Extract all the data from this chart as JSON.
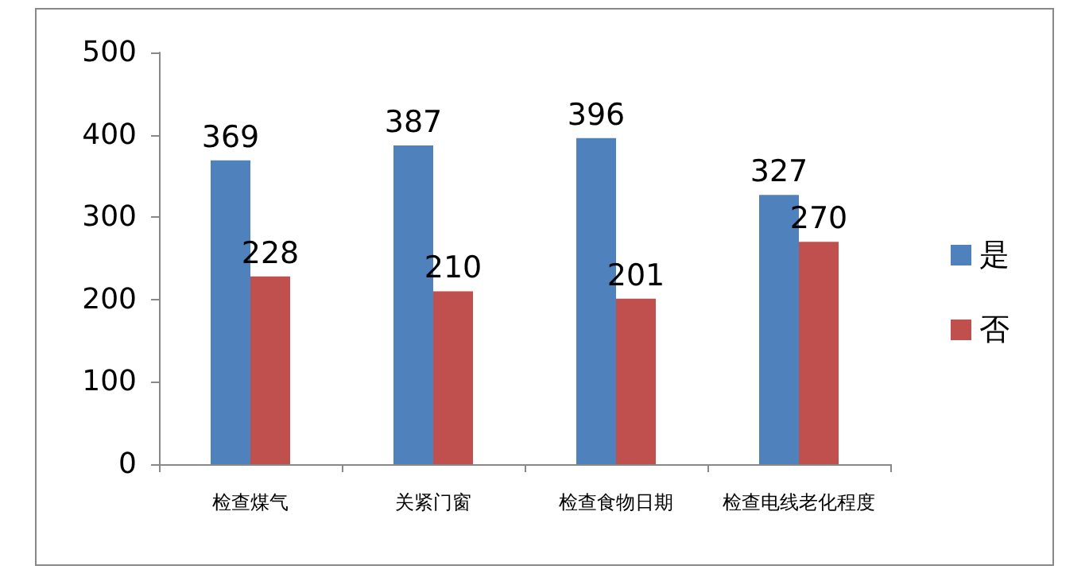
{
  "chart_data": {
    "type": "bar",
    "categories": [
      "检查煤气",
      "关紧门窗",
      "检查食物日期",
      "检查电线老化程度"
    ],
    "series": [
      {
        "name": "是",
        "color": "#4f81bd",
        "values": [
          369,
          387,
          396,
          327
        ]
      },
      {
        "name": "否",
        "color": "#c0504d",
        "values": [
          228,
          210,
          201,
          270
        ]
      }
    ],
    "ylim": [
      0,
      500
    ],
    "yticks": [
      0,
      100,
      200,
      300,
      400,
      500
    ],
    "grid": false,
    "legend": "right",
    "data_labels": true
  }
}
